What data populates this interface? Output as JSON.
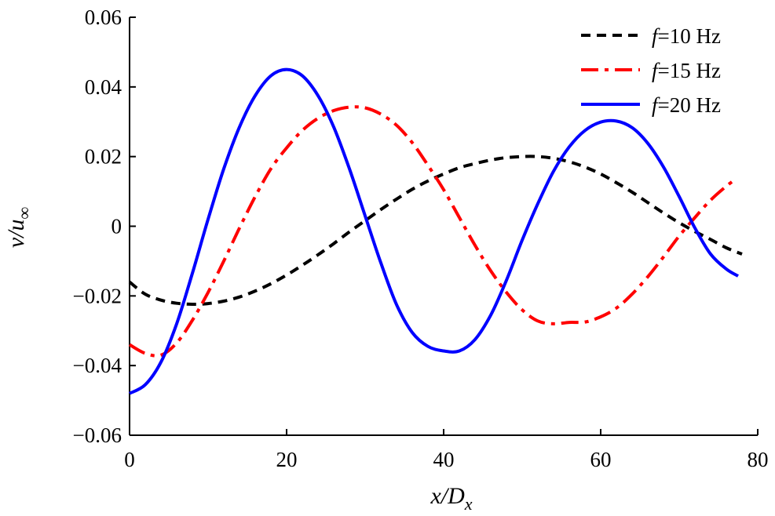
{
  "chart_data": {
    "type": "line",
    "xlabel": {
      "main": "x/D",
      "sub": "x"
    },
    "ylabel": {
      "main": "v/u",
      "sub": "∞"
    },
    "xlim": [
      0,
      80
    ],
    "ylim": [
      -0.06,
      0.06
    ],
    "x_ticks": [
      0,
      20,
      40,
      60,
      80
    ],
    "y_ticks": [
      -0.06,
      -0.04,
      -0.02,
      0,
      0.02,
      0.04,
      0.06
    ],
    "y_tick_labels": [
      "−0.06",
      "−0.04",
      "−0.02",
      "0",
      "0.02",
      "0.04",
      "0.06"
    ],
    "x_tick_labels": [
      "0",
      "20",
      "40",
      "60",
      "80"
    ],
    "grid": false,
    "legend_position": "top-right",
    "series": [
      {
        "name": "f=10 Hz",
        "name_parts": {
          "italic": "f",
          "rest": "=10 Hz"
        },
        "color": "#000000",
        "dash": "12,8",
        "x": [
          0,
          2,
          4,
          6,
          8,
          10,
          12,
          14,
          16,
          18,
          20,
          22,
          24,
          26,
          28,
          30,
          32,
          34,
          36,
          38,
          40,
          42,
          44,
          46,
          48,
          50,
          52,
          54,
          56,
          58,
          60,
          62,
          64,
          66,
          68,
          70,
          72,
          74,
          76,
          78
        ],
        "y": [
          -0.016,
          -0.0195,
          -0.0212,
          -0.0221,
          -0.0224,
          -0.0222,
          -0.0215,
          -0.0203,
          -0.0186,
          -0.0165,
          -0.014,
          -0.0112,
          -0.0082,
          -0.005,
          -0.0016,
          0.0016,
          0.0048,
          0.0078,
          0.0106,
          0.013,
          0.015,
          0.0168,
          0.018,
          0.019,
          0.0197,
          0.02,
          0.02,
          0.0195,
          0.0185,
          0.017,
          0.015,
          0.0125,
          0.0098,
          0.0068,
          0.0038,
          0.001,
          -0.0015,
          -0.0038,
          -0.0062,
          -0.008
        ]
      },
      {
        "name": "f=15 Hz",
        "name_parts": {
          "italic": "f",
          "rest": "=15 Hz"
        },
        "color": "#ff0000",
        "dash": "22,8,5,8",
        "x": [
          0,
          2,
          4,
          6,
          8,
          10,
          12,
          14,
          16,
          18,
          20,
          22,
          24,
          26,
          28,
          30,
          32,
          34,
          36,
          38,
          40,
          42,
          44,
          46,
          48,
          50,
          52,
          54,
          56,
          58,
          60,
          62,
          64,
          66,
          68,
          70,
          72,
          74,
          76,
          77
        ],
        "y": [
          -0.034,
          -0.0365,
          -0.037,
          -0.0335,
          -0.027,
          -0.019,
          -0.01,
          -0.0005,
          0.0085,
          0.0165,
          0.0225,
          0.0275,
          0.031,
          0.0332,
          0.0342,
          0.034,
          0.0322,
          0.029,
          0.024,
          0.0175,
          0.0105,
          0.0025,
          -0.0055,
          -0.0128,
          -0.019,
          -0.024,
          -0.0272,
          -0.028,
          -0.0276,
          -0.0275,
          -0.026,
          -0.0235,
          -0.0195,
          -0.0145,
          -0.0088,
          -0.0028,
          0.0025,
          0.0075,
          0.0115,
          0.0132
        ]
      },
      {
        "name": "f=20 Hz",
        "name_parts": {
          "italic": "f",
          "rest": "=20 Hz"
        },
        "color": "#0000ff",
        "dash": "",
        "x": [
          0,
          2,
          4,
          6,
          8,
          10,
          12,
          14,
          16,
          18,
          20,
          22,
          24,
          26,
          28,
          30,
          32,
          34,
          36,
          38,
          40,
          42,
          44,
          46,
          48,
          50,
          52,
          54,
          56,
          58,
          60,
          62,
          64,
          66,
          68,
          70,
          72,
          74,
          76,
          77.5
        ],
        "y": [
          -0.048,
          -0.0455,
          -0.039,
          -0.028,
          -0.0135,
          0.002,
          0.0165,
          0.0285,
          0.0375,
          0.0432,
          0.045,
          0.0432,
          0.0375,
          0.0285,
          0.0165,
          0.003,
          -0.0105,
          -0.0225,
          -0.0305,
          -0.0345,
          -0.0358,
          -0.0358,
          -0.0325,
          -0.0255,
          -0.0155,
          -0.004,
          0.0065,
          0.0158,
          0.0228,
          0.0275,
          0.0299,
          0.0302,
          0.0283,
          0.0238,
          0.017,
          0.0085,
          -0.0005,
          -0.008,
          -0.0123,
          -0.0143
        ]
      }
    ]
  }
}
